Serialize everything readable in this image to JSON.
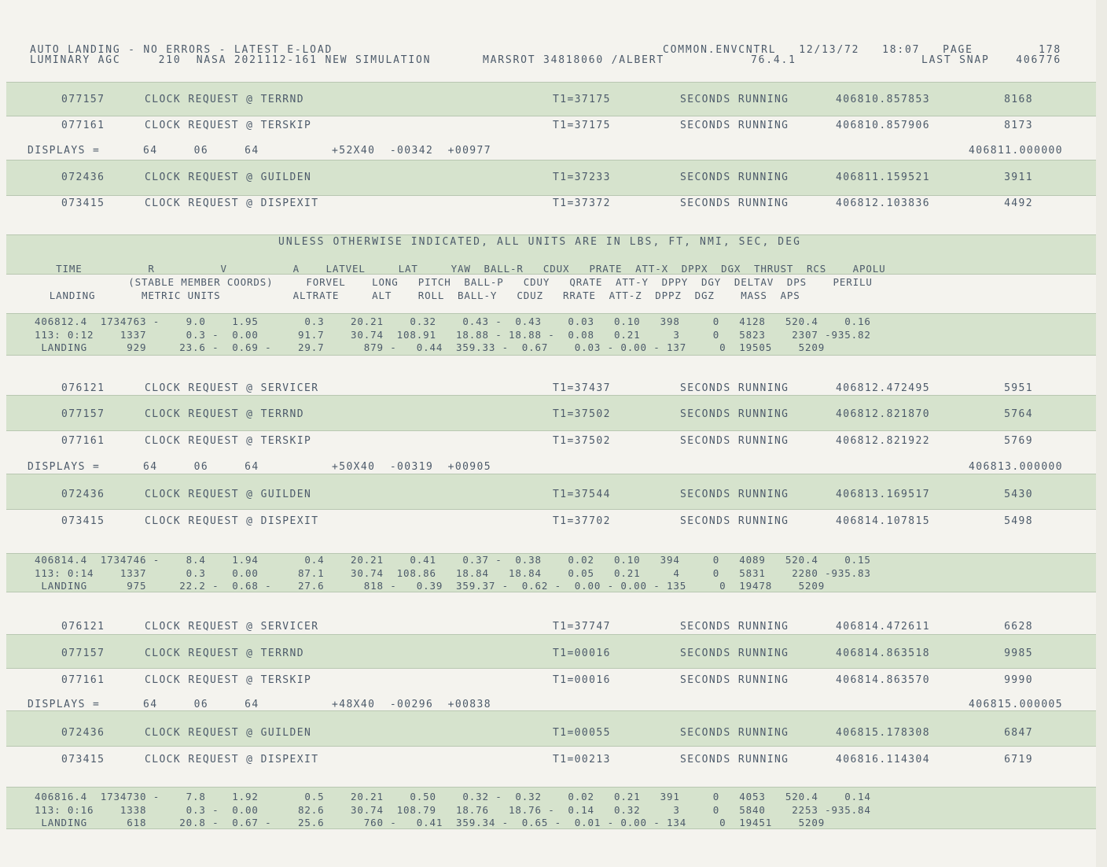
{
  "header": {
    "line1_left": "AUTO LANDING - NO ERRORS - LATEST E-LOAD",
    "line1_right": "COMMON.ENVCNTRL   12/13/72   18:07   PAGE",
    "line2_left": "LUMINARY AGC     210  NASA 2021112-161 NEW SIMULATION",
    "line2_mid": "MARSROT 34818060 /ALBERT",
    "line2_ver": "76.4.1",
    "line2_snap": "LAST SNAP",
    "page": "178",
    "snap": "406776"
  },
  "clock_rows": [
    {
      "code": "077157",
      "desc": "CLOCK REQUEST @ TERRND",
      "t1": "T1=37175",
      "status": "SECONDS RUNNING",
      "time": "406810.857853",
      "count": "8168"
    },
    {
      "code": "077161",
      "desc": "CLOCK REQUEST @ TERSKIP",
      "t1": "T1=37175",
      "status": "SECONDS RUNNING",
      "time": "406810.857906",
      "count": "8173"
    },
    {
      "code": "072436",
      "desc": "CLOCK REQUEST @ GUILDEN",
      "t1": "T1=37233",
      "status": "SECONDS RUNNING",
      "time": "406811.159521",
      "count": "3911"
    },
    {
      "code": "073415",
      "desc": "CLOCK REQUEST @ DISPEXIT",
      "t1": "T1=37372",
      "status": "SECONDS RUNNING",
      "time": "406812.103836",
      "count": "4492"
    },
    {
      "code": "076121",
      "desc": "CLOCK REQUEST @ SERVICER",
      "t1": "T1=37437",
      "status": "SECONDS RUNNING",
      "time": "406812.472495",
      "count": "5951"
    },
    {
      "code": "077157",
      "desc": "CLOCK REQUEST @ TERRND",
      "t1": "T1=37502",
      "status": "SECONDS RUNNING",
      "time": "406812.821870",
      "count": "5764"
    },
    {
      "code": "077161",
      "desc": "CLOCK REQUEST @ TERSKIP",
      "t1": "T1=37502",
      "status": "SECONDS RUNNING",
      "time": "406812.821922",
      "count": "5769"
    },
    {
      "code": "072436",
      "desc": "CLOCK REQUEST @ GUILDEN",
      "t1": "T1=37544",
      "status": "SECONDS RUNNING",
      "time": "406813.169517",
      "count": "5430"
    },
    {
      "code": "073415",
      "desc": "CLOCK REQUEST @ DISPEXIT",
      "t1": "T1=37702",
      "status": "SECONDS RUNNING",
      "time": "406814.107815",
      "count": "5498"
    },
    {
      "code": "076121",
      "desc": "CLOCK REQUEST @ SERVICER",
      "t1": "T1=37747",
      "status": "SECONDS RUNNING",
      "time": "406814.472611",
      "count": "6628"
    },
    {
      "code": "077157",
      "desc": "CLOCK REQUEST @ TERRND",
      "t1": "T1=00016",
      "status": "SECONDS RUNNING",
      "time": "406814.863518",
      "count": "9985"
    },
    {
      "code": "077161",
      "desc": "CLOCK REQUEST @ TERSKIP",
      "t1": "T1=00016",
      "status": "SECONDS RUNNING",
      "time": "406814.863570",
      "count": "9990"
    },
    {
      "code": "072436",
      "desc": "CLOCK REQUEST @ GUILDEN",
      "t1": "T1=00055",
      "status": "SECONDS RUNNING",
      "time": "406815.178308",
      "count": "6847"
    },
    {
      "code": "073415",
      "desc": "CLOCK REQUEST @ DISPEXIT",
      "t1": "T1=00213",
      "status": "SECONDS RUNNING",
      "time": "406816.114304",
      "count": "6719"
    }
  ],
  "displays_rows": [
    {
      "label": "DISPLAYS =",
      "values": "64     06     64",
      "vector": "+52X40  -00342  +00977",
      "time": "406811.000000"
    },
    {
      "label": "DISPLAYS =",
      "values": "64     06     64",
      "vector": "+50X40  -00319  +00905",
      "time": "406813.000000"
    },
    {
      "label": "DISPLAYS =",
      "values": "64     06     64",
      "vector": "+48X40  -00296  +00838",
      "time": "406815.000005"
    }
  ],
  "units_note": "UNLESS OTHERWISE INDICATED, ALL UNITS ARE IN LBS, FT, NMI, SEC, DEG",
  "columns": {
    "line1": "   TIME          R          V          A    LATVEL     LAT     YAW  BALL-R   CDUX   PRATE  ATT-X  DPPX  DGX  THRUST  RCS    APOLU",
    "line2": "              (STABLE MEMBER COORDS)     FORVEL    LONG   PITCH  BALL-P   CDUY   QRATE  ATT-Y  DPPY  DGY  DELTAV  DPS    PERILU",
    "line3": "  LANDING       METRIC UNITS           ALTRATE     ALT    ROLL  BALL-Y   CDUZ   RRATE  ATT-Z  DPPZ  DGZ    MASS  APS"
  },
  "data_blocks": [
    {
      "line1": "406812.4  1734763 -    9.0    1.95       0.3    20.21    0.32    0.43 -  0.43    0.03   0.10   398     0   4128   520.4    0.16",
      "line2": "113: 0:12    1337      0.3 -  0.00      91.7    30.74  108.91   18.88 - 18.88 -  0.08   0.21     3     0   5823    2307 -935.82",
      "line3": " LANDING      929     23.6 -  0.69 -    29.7      879 -   0.44  359.33 -  0.67    0.03 - 0.00 - 137     0  19505    5209"
    },
    {
      "line1": "406814.4  1734746 -    8.4    1.94       0.4    20.21    0.41    0.37 -  0.38    0.02   0.10   394     0   4089   520.4    0.15",
      "line2": "113: 0:14    1337      0.3    0.00      87.1    30.74  108.86   18.84   18.84    0.05   0.21     4     0   5831    2280 -935.83",
      "line3": " LANDING      975     22.2 -  0.68 -    27.6      818 -   0.39  359.37 -  0.62 -  0.00 - 0.00 - 135     0  19478    5209"
    },
    {
      "line1": "406816.4  1734730 -    7.8    1.92       0.5    20.21    0.50    0.32 -  0.32    0.02   0.21   391     0   4053   520.4    0.14",
      "line2": "113: 0:16    1338      0.3 -  0.00      82.6    30.74  108.79   18.76   18.76 -  0.14   0.32     3     0   5840    2253 -935.84",
      "line3": " LANDING      618     20.8 -  0.67 -    25.6      760 -   0.41  359.34 -  0.65 -  0.01 - 0.00 - 134     0  19451    5209"
    }
  ]
}
